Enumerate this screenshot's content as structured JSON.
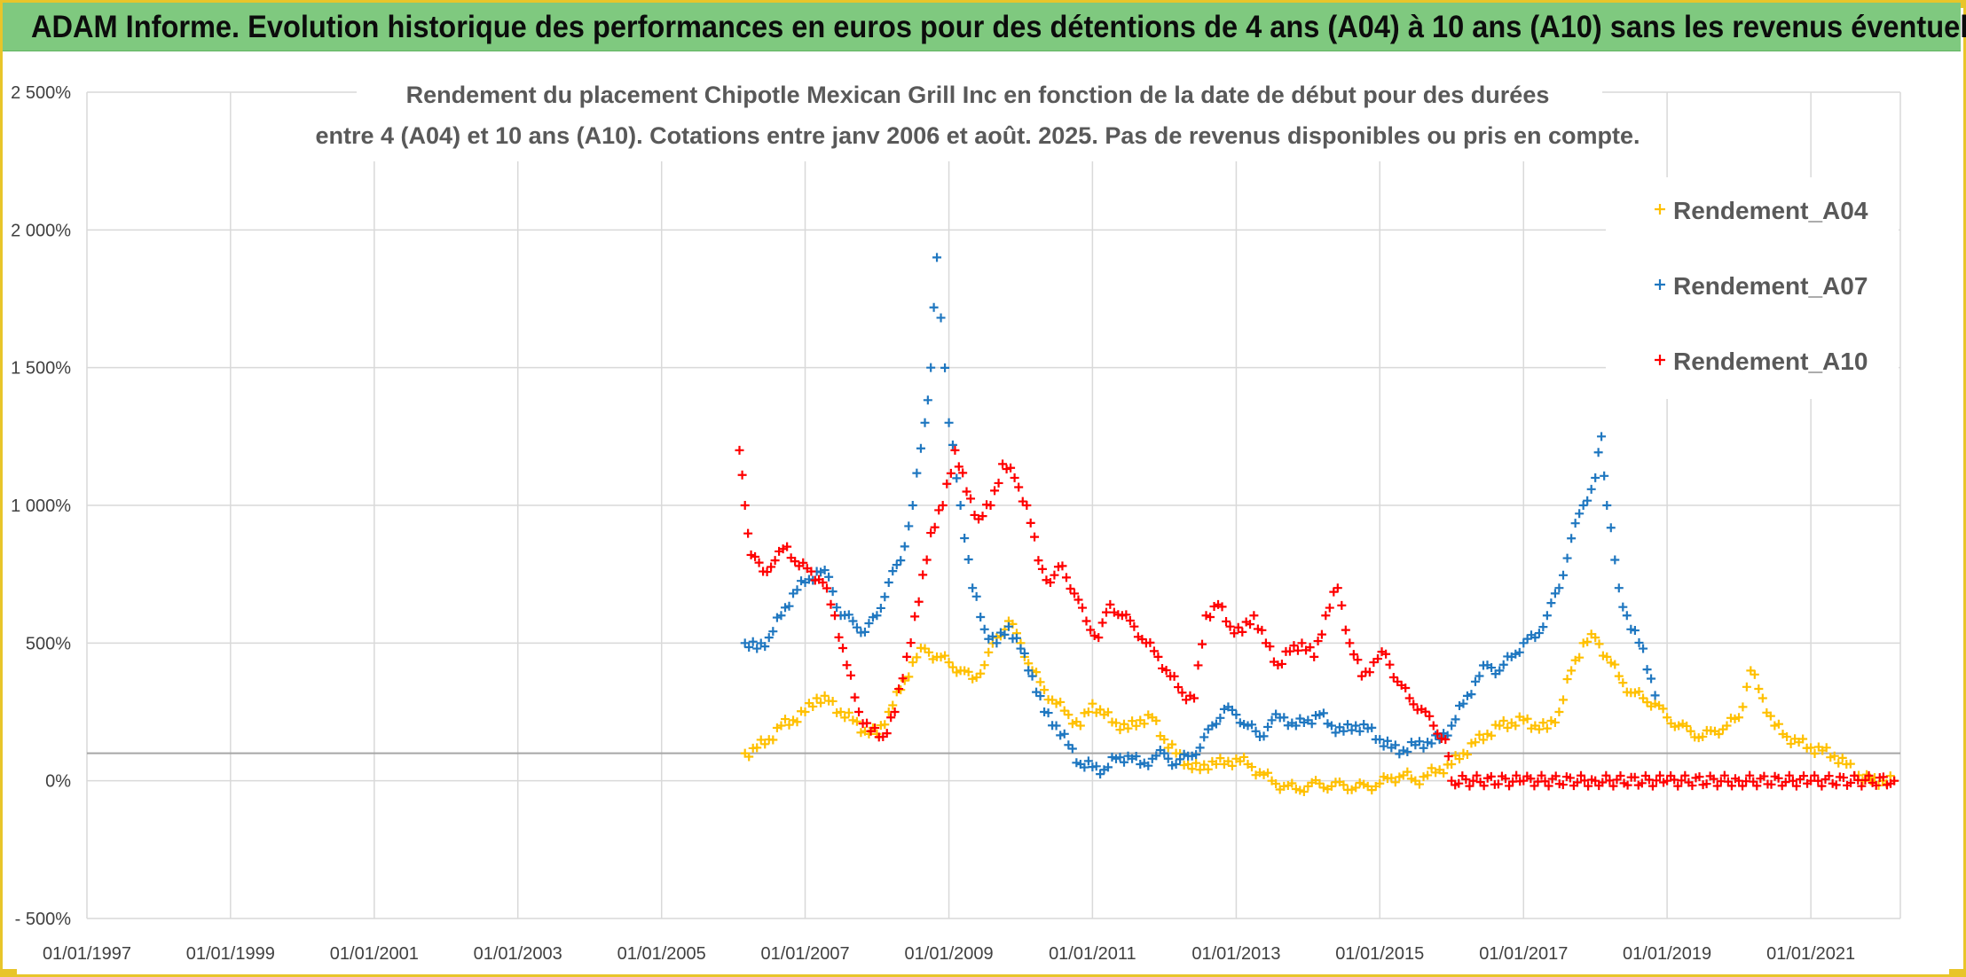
{
  "banner": {
    "title": "ADAM Informe. Evolution historique des performances en euros pour des détentions de 4 ans (A04) à 10 ans (A10) sans les revenus éventuels"
  },
  "colors": {
    "banner_bg": "#7fc97f",
    "frame": "#e8c52a",
    "A04": "#ffc000",
    "A07": "#1f77c0",
    "A10": "#ff0000"
  },
  "chart_data": {
    "type": "scatter",
    "title_lines": [
      "Rendement du placement Chipotle Mexican Grill Inc en fonction de la date de début pour des durées",
      "entre 4 (A04) et 10 ans (A10). Cotations entre janv 2006 et août. 2025. Pas de revenus disponibles ou pris en compte."
    ],
    "xlabel": "",
    "ylabel": "",
    "x_range": [
      "1997-01-01",
      "2022-04-01"
    ],
    "x_ticks": [
      "01/01/1997",
      "01/01/1999",
      "01/01/2001",
      "01/01/2003",
      "01/01/2005",
      "01/01/2007",
      "01/01/2009",
      "01/01/2011",
      "01/01/2013",
      "01/01/2015",
      "01/01/2017",
      "01/01/2019",
      "01/01/2021"
    ],
    "y_range": [
      -500,
      2500
    ],
    "y_ticks": [
      -500,
      0,
      500,
      1000,
      1500,
      2000,
      2500
    ],
    "y_tick_labels": [
      "- 500%",
      "0%",
      "500%",
      "1 000%",
      "1 500%",
      "2 000%",
      "2 500%"
    ],
    "grid": true,
    "legend_position": "top-right",
    "marker": "+",
    "series": [
      {
        "name": "Rendement_A04",
        "color": "#ffc000",
        "points": [
          [
            "2006-03-01",
            100
          ],
          [
            "2006-05-01",
            120
          ],
          [
            "2006-07-01",
            150
          ],
          [
            "2006-09-01",
            200
          ],
          [
            "2006-11-01",
            220
          ],
          [
            "2007-01-01",
            250
          ],
          [
            "2007-03-01",
            300
          ],
          [
            "2007-05-01",
            290
          ],
          [
            "2007-07-01",
            250
          ],
          [
            "2007-09-01",
            220
          ],
          [
            "2007-11-01",
            180
          ],
          [
            "2008-01-01",
            170
          ],
          [
            "2008-03-01",
            250
          ],
          [
            "2008-05-01",
            330
          ],
          [
            "2008-07-01",
            430
          ],
          [
            "2008-09-01",
            480
          ],
          [
            "2008-11-01",
            450
          ],
          [
            "2009-01-01",
            430
          ],
          [
            "2009-03-01",
            400
          ],
          [
            "2009-05-01",
            370
          ],
          [
            "2009-07-01",
            420
          ],
          [
            "2009-09-01",
            520
          ],
          [
            "2009-11-01",
            580
          ],
          [
            "2010-01-01",
            500
          ],
          [
            "2010-03-01",
            400
          ],
          [
            "2010-05-01",
            330
          ],
          [
            "2010-07-01",
            280
          ],
          [
            "2010-09-01",
            240
          ],
          [
            "2010-11-01",
            200
          ],
          [
            "2011-01-01",
            280
          ],
          [
            "2011-03-01",
            240
          ],
          [
            "2011-05-01",
            210
          ],
          [
            "2011-07-01",
            190
          ],
          [
            "2011-09-01",
            220
          ],
          [
            "2011-11-01",
            230
          ],
          [
            "2012-01-01",
            150
          ],
          [
            "2012-03-01",
            100
          ],
          [
            "2012-05-01",
            60
          ],
          [
            "2012-07-01",
            40
          ],
          [
            "2012-09-01",
            70
          ],
          [
            "2012-11-01",
            60
          ],
          [
            "2013-01-01",
            80
          ],
          [
            "2013-03-01",
            60
          ],
          [
            "2013-05-01",
            30
          ],
          [
            "2013-07-01",
            0
          ],
          [
            "2013-09-01",
            -20
          ],
          [
            "2013-11-01",
            -30
          ],
          [
            "2014-01-01",
            -20
          ],
          [
            "2014-03-01",
            -10
          ],
          [
            "2014-05-01",
            -20
          ],
          [
            "2014-07-01",
            -15
          ],
          [
            "2014-09-01",
            -25
          ],
          [
            "2014-11-01",
            -20
          ],
          [
            "2015-01-01",
            -10
          ],
          [
            "2015-03-01",
            10
          ],
          [
            "2015-05-01",
            20
          ],
          [
            "2015-07-01",
            0
          ],
          [
            "2015-09-01",
            20
          ],
          [
            "2015-11-01",
            40
          ],
          [
            "2016-01-01",
            60
          ],
          [
            "2016-03-01",
            100
          ],
          [
            "2016-05-01",
            140
          ],
          [
            "2016-07-01",
            170
          ],
          [
            "2016-09-01",
            200
          ],
          [
            "2016-11-01",
            210
          ],
          [
            "2017-01-01",
            220
          ],
          [
            "2017-03-01",
            200
          ],
          [
            "2017-05-01",
            190
          ],
          [
            "2017-07-01",
            250
          ],
          [
            "2017-09-01",
            400
          ],
          [
            "2017-11-01",
            500
          ],
          [
            "2018-01-01",
            520
          ],
          [
            "2018-03-01",
            450
          ],
          [
            "2018-05-01",
            380
          ],
          [
            "2018-07-01",
            320
          ],
          [
            "2018-09-01",
            300
          ],
          [
            "2018-11-01",
            280
          ],
          [
            "2019-01-01",
            230
          ],
          [
            "2019-03-01",
            200
          ],
          [
            "2019-05-01",
            180
          ],
          [
            "2019-07-01",
            160
          ],
          [
            "2019-09-01",
            180
          ],
          [
            "2019-11-01",
            200
          ],
          [
            "2020-01-01",
            230
          ],
          [
            "2020-03-01",
            400
          ],
          [
            "2020-05-01",
            300
          ],
          [
            "2020-07-01",
            200
          ],
          [
            "2020-09-01",
            160
          ],
          [
            "2020-11-01",
            140
          ],
          [
            "2021-01-01",
            120
          ],
          [
            "2021-03-01",
            110
          ],
          [
            "2021-05-01",
            90
          ],
          [
            "2021-07-01",
            60
          ],
          [
            "2021-09-01",
            20
          ],
          [
            "2021-11-01",
            0
          ],
          [
            "2022-01-01",
            0
          ],
          [
            "2022-03-01",
            0
          ]
        ]
      },
      {
        "name": "Rendement_A07",
        "color": "#1f77c0",
        "points": [
          [
            "2006-03-01",
            500
          ],
          [
            "2006-05-01",
            480
          ],
          [
            "2006-07-01",
            520
          ],
          [
            "2006-09-01",
            600
          ],
          [
            "2006-11-01",
            680
          ],
          [
            "2007-01-01",
            720
          ],
          [
            "2007-03-01",
            760
          ],
          [
            "2007-05-01",
            740
          ],
          [
            "2007-07-01",
            600
          ],
          [
            "2007-09-01",
            580
          ],
          [
            "2007-11-01",
            540
          ],
          [
            "2008-01-01",
            600
          ],
          [
            "2008-03-01",
            720
          ],
          [
            "2008-05-01",
            800
          ],
          [
            "2008-07-01",
            1000
          ],
          [
            "2008-09-01",
            1300
          ],
          [
            "2008-10-01",
            1500
          ],
          [
            "2008-11-01",
            1900
          ],
          [
            "2009-01-01",
            1300
          ],
          [
            "2009-03-01",
            1000
          ],
          [
            "2009-05-01",
            700
          ],
          [
            "2009-07-01",
            550
          ],
          [
            "2009-09-01",
            500
          ],
          [
            "2009-11-01",
            560
          ],
          [
            "2010-01-01",
            480
          ],
          [
            "2010-03-01",
            380
          ],
          [
            "2010-05-01",
            250
          ],
          [
            "2010-07-01",
            200
          ],
          [
            "2010-09-01",
            130
          ],
          [
            "2010-11-01",
            60
          ],
          [
            "2011-01-01",
            50
          ],
          [
            "2011-03-01",
            40
          ],
          [
            "2011-05-01",
            80
          ],
          [
            "2011-07-01",
            90
          ],
          [
            "2011-09-01",
            60
          ],
          [
            "2011-11-01",
            80
          ],
          [
            "2012-01-01",
            100
          ],
          [
            "2012-03-01",
            60
          ],
          [
            "2012-05-01",
            90
          ],
          [
            "2012-07-01",
            120
          ],
          [
            "2012-09-01",
            200
          ],
          [
            "2012-11-01",
            260
          ],
          [
            "2013-01-01",
            240
          ],
          [
            "2013-03-01",
            200
          ],
          [
            "2013-05-01",
            160
          ],
          [
            "2013-07-01",
            220
          ],
          [
            "2013-09-01",
            230
          ],
          [
            "2013-11-01",
            200
          ],
          [
            "2014-01-01",
            220
          ],
          [
            "2014-03-01",
            240
          ],
          [
            "2014-05-01",
            200
          ],
          [
            "2014-07-01",
            180
          ],
          [
            "2014-09-01",
            200
          ],
          [
            "2014-11-01",
            190
          ],
          [
            "2015-01-01",
            150
          ],
          [
            "2015-03-01",
            120
          ],
          [
            "2015-05-01",
            110
          ],
          [
            "2015-07-01",
            130
          ],
          [
            "2015-09-01",
            140
          ],
          [
            "2015-11-01",
            150
          ],
          [
            "2016-01-01",
            200
          ],
          [
            "2016-03-01",
            280
          ],
          [
            "2016-05-01",
            360
          ],
          [
            "2016-07-01",
            420
          ],
          [
            "2016-09-01",
            400
          ],
          [
            "2016-11-01",
            450
          ],
          [
            "2017-01-01",
            500
          ],
          [
            "2017-03-01",
            520
          ],
          [
            "2017-05-01",
            600
          ],
          [
            "2017-07-01",
            700
          ],
          [
            "2017-09-01",
            880
          ],
          [
            "2017-11-01",
            1000
          ],
          [
            "2018-01-01",
            1100
          ],
          [
            "2018-02-01",
            1250
          ],
          [
            "2018-03-01",
            1000
          ],
          [
            "2018-05-01",
            700
          ],
          [
            "2018-07-01",
            550
          ],
          [
            "2018-09-01",
            480
          ],
          [
            "2018-11-01",
            310
          ]
        ]
      },
      {
        "name": "Rendement_A10",
        "color": "#ff0000",
        "points": [
          [
            "2006-02-01",
            1200
          ],
          [
            "2006-03-01",
            1000
          ],
          [
            "2006-04-01",
            820
          ],
          [
            "2006-06-01",
            760
          ],
          [
            "2006-08-01",
            800
          ],
          [
            "2006-10-01",
            850
          ],
          [
            "2006-12-01",
            780
          ],
          [
            "2007-02-01",
            760
          ],
          [
            "2007-04-01",
            720
          ],
          [
            "2007-06-01",
            600
          ],
          [
            "2007-08-01",
            420
          ],
          [
            "2007-10-01",
            250
          ],
          [
            "2007-12-01",
            180
          ],
          [
            "2008-02-01",
            160
          ],
          [
            "2008-04-01",
            250
          ],
          [
            "2008-06-01",
            450
          ],
          [
            "2008-08-01",
            650
          ],
          [
            "2008-10-01",
            900
          ],
          [
            "2008-12-01",
            1000
          ],
          [
            "2009-02-01",
            1200
          ],
          [
            "2009-04-01",
            1050
          ],
          [
            "2009-06-01",
            950
          ],
          [
            "2009-08-01",
            1000
          ],
          [
            "2009-10-01",
            1150
          ],
          [
            "2009-12-01",
            1100
          ],
          [
            "2010-02-01",
            1000
          ],
          [
            "2010-04-01",
            800
          ],
          [
            "2010-06-01",
            720
          ],
          [
            "2010-08-01",
            780
          ],
          [
            "2010-10-01",
            680
          ],
          [
            "2010-12-01",
            580
          ],
          [
            "2011-02-01",
            520
          ],
          [
            "2011-04-01",
            640
          ],
          [
            "2011-06-01",
            600
          ],
          [
            "2011-08-01",
            560
          ],
          [
            "2011-10-01",
            500
          ],
          [
            "2011-12-01",
            450
          ],
          [
            "2012-02-01",
            380
          ],
          [
            "2012-04-01",
            320
          ],
          [
            "2012-06-01",
            300
          ],
          [
            "2012-08-01",
            600
          ],
          [
            "2012-10-01",
            640
          ],
          [
            "2012-12-01",
            560
          ],
          [
            "2013-02-01",
            540
          ],
          [
            "2013-04-01",
            600
          ],
          [
            "2013-06-01",
            500
          ],
          [
            "2013-08-01",
            420
          ],
          [
            "2013-10-01",
            470
          ],
          [
            "2013-12-01",
            500
          ],
          [
            "2014-02-01",
            450
          ],
          [
            "2014-04-01",
            600
          ],
          [
            "2014-06-01",
            700
          ],
          [
            "2014-08-01",
            500
          ],
          [
            "2014-10-01",
            380
          ],
          [
            "2014-12-01",
            430
          ],
          [
            "2015-02-01",
            460
          ],
          [
            "2015-04-01",
            360
          ],
          [
            "2015-06-01",
            300
          ],
          [
            "2015-08-01",
            260
          ],
          [
            "2015-10-01",
            200
          ],
          [
            "2015-12-01",
            150
          ],
          [
            "2016-01-01",
            0
          ],
          [
            "2017-01-01",
            0
          ],
          [
            "2018-01-01",
            0
          ],
          [
            "2019-01-01",
            0
          ],
          [
            "2020-01-01",
            0
          ],
          [
            "2021-01-01",
            0
          ],
          [
            "2022-03-01",
            0
          ]
        ]
      }
    ]
  }
}
